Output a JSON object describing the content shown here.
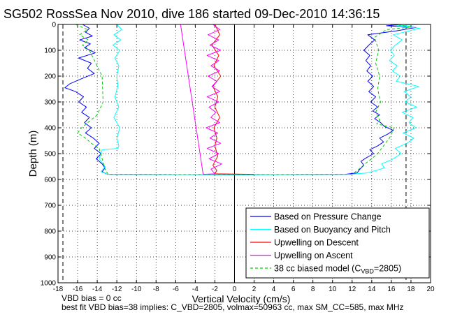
{
  "chart_data": {
    "type": "line",
    "title": "SG502 RossSea Nov 2010, dive 186 started 09-Dec-2010 14:36:15",
    "xlabel": "Vertical Velocity (cm/s)",
    "ylabel": "Depth (m)",
    "xlim": [
      -18,
      20
    ],
    "ylim": [
      1000,
      0
    ],
    "y_reversed": true,
    "grid": true,
    "xticks": [
      "-18",
      "-16",
      "-14",
      "-12",
      "-10",
      "-8",
      "-6",
      "-4",
      "-2",
      "0",
      "2",
      "4",
      "6",
      "8",
      "10",
      "12",
      "14",
      "16",
      "18",
      "20"
    ],
    "yticks": [
      "0",
      "100",
      "200",
      "300",
      "400",
      "500",
      "600",
      "700",
      "800",
      "900",
      "1000"
    ],
    "legend": {
      "placement": "bottom-right",
      "entries": [
        {
          "label": "Based on Pressure Change",
          "color": "#0000ff",
          "style": "solid"
        },
        {
          "label": "Based on Buoyancy and Pitch",
          "color": "#00ffff",
          "style": "solid"
        },
        {
          "label": "Upwelling on Descent",
          "color": "#ff0000",
          "style": "solid"
        },
        {
          "label": "Upwelling on Ascent",
          "color": "#ff00ff",
          "style": "solid"
        },
        {
          "label": "38 cc biased model (C",
          "sub": "VBD",
          "suffix": "=2805)",
          "color": "#00cc00",
          "style": "dashed"
        }
      ]
    },
    "vlines": [
      {
        "x": -17.5,
        "style": "dashed"
      },
      {
        "x": 17.5,
        "style": "dashed"
      },
      {
        "x": 0,
        "style": "solid"
      }
    ],
    "series": [
      {
        "color": "#0000ff",
        "points": [
          [
            -15.5,
            0
          ],
          [
            -14.8,
            15
          ],
          [
            -15.2,
            30
          ],
          [
            -14.5,
            45
          ],
          [
            -15.8,
            60
          ],
          [
            -14.7,
            75
          ],
          [
            -15.3,
            90
          ],
          [
            -14.2,
            110
          ],
          [
            -15.9,
            130
          ],
          [
            -14.6,
            150
          ],
          [
            -15.0,
            170
          ],
          [
            -14.3,
            190
          ],
          [
            -15.6,
            210
          ],
          [
            -16.8,
            230
          ],
          [
            -17.3,
            245
          ],
          [
            -16.2,
            260
          ],
          [
            -15.4,
            280
          ],
          [
            -15.9,
            300
          ],
          [
            -15.1,
            320
          ],
          [
            -15.6,
            340
          ],
          [
            -14.8,
            360
          ],
          [
            -15.3,
            380
          ],
          [
            -14.6,
            400
          ],
          [
            -15.2,
            420
          ],
          [
            -14.4,
            440
          ],
          [
            -13.8,
            460
          ],
          [
            -14.3,
            480
          ],
          [
            -13.6,
            500
          ],
          [
            -14.1,
            520
          ],
          [
            -13.5,
            540
          ],
          [
            -13.2,
            555
          ],
          [
            -13.5,
            570
          ],
          [
            -13.0,
            580
          ],
          [
            -5,
            581
          ],
          [
            0,
            582
          ],
          [
            4,
            581
          ],
          [
            11.3,
            580
          ],
          [
            12.5,
            575
          ],
          [
            12.8,
            560
          ],
          [
            13.2,
            545
          ],
          [
            12.9,
            530
          ],
          [
            13.5,
            515
          ],
          [
            14.2,
            500
          ],
          [
            13.8,
            485
          ],
          [
            14.6,
            470
          ],
          [
            15.2,
            455
          ],
          [
            14.8,
            440
          ],
          [
            15.6,
            425
          ],
          [
            16.2,
            410
          ],
          [
            15.3,
            395
          ],
          [
            14.9,
            380
          ],
          [
            14.3,
            365
          ],
          [
            14.8,
            350
          ],
          [
            14.1,
            335
          ],
          [
            14.6,
            320
          ],
          [
            13.9,
            300
          ],
          [
            14.4,
            280
          ],
          [
            13.7,
            260
          ],
          [
            14.2,
            240
          ],
          [
            13.6,
            220
          ],
          [
            14.1,
            200
          ],
          [
            13.5,
            180
          ],
          [
            13.9,
            160
          ],
          [
            13.4,
            140
          ],
          [
            13.8,
            120
          ],
          [
            13.2,
            100
          ],
          [
            13.7,
            80
          ],
          [
            14.3,
            60
          ],
          [
            13.6,
            40
          ],
          [
            16.5,
            25
          ],
          [
            18.5,
            12
          ],
          [
            15.5,
            5
          ],
          [
            17.2,
            0
          ]
        ]
      },
      {
        "color": "#00ffff",
        "points": [
          [
            -12.0,
            0
          ],
          [
            -11.5,
            20
          ],
          [
            -12.3,
            40
          ],
          [
            -11.6,
            60
          ],
          [
            -12.4,
            80
          ],
          [
            -11.7,
            100
          ],
          [
            -12.2,
            130
          ],
          [
            -11.8,
            160
          ],
          [
            -12.0,
            200
          ],
          [
            -11.9,
            240
          ],
          [
            -12.2,
            280
          ],
          [
            -11.8,
            320
          ],
          [
            -12.3,
            360
          ],
          [
            -11.7,
            400
          ],
          [
            -12.0,
            440
          ],
          [
            -11.8,
            470
          ],
          [
            -11.9,
            480
          ],
          [
            -13.5,
            485
          ],
          [
            -13.8,
            520
          ],
          [
            -13.2,
            550
          ],
          [
            -13.6,
            570
          ],
          [
            -13.0,
            580
          ],
          [
            -5,
            581
          ],
          [
            0,
            582
          ],
          [
            5,
            581
          ],
          [
            11.8,
            580
          ],
          [
            13.5,
            575
          ],
          [
            14.5,
            565
          ],
          [
            15.3,
            555
          ],
          [
            15.0,
            540
          ],
          [
            16.2,
            520
          ],
          [
            17.0,
            500
          ],
          [
            16.4,
            480
          ],
          [
            17.6,
            460
          ],
          [
            18.3,
            440
          ],
          [
            17.2,
            420
          ],
          [
            18.5,
            400
          ],
          [
            17.8,
            380
          ],
          [
            18.2,
            360
          ],
          [
            17.1,
            340
          ],
          [
            18.6,
            320
          ],
          [
            17.4,
            300
          ],
          [
            18.0,
            280
          ],
          [
            17.3,
            260
          ],
          [
            18.8,
            240
          ],
          [
            16.5,
            220
          ],
          [
            16.9,
            200
          ],
          [
            16.1,
            180
          ],
          [
            16.6,
            160
          ],
          [
            15.8,
            140
          ],
          [
            16.3,
            120
          ],
          [
            15.9,
            100
          ],
          [
            16.4,
            80
          ],
          [
            17.1,
            60
          ],
          [
            16.2,
            40
          ],
          [
            17.8,
            25
          ],
          [
            18.9,
            15
          ],
          [
            16.5,
            5
          ],
          [
            19.0,
            0
          ]
        ]
      },
      {
        "color": "#00cc00",
        "style": "dashed",
        "points": [
          [
            -16.2,
            0
          ],
          [
            -15.0,
            20
          ],
          [
            -15.8,
            40
          ],
          [
            -14.9,
            60
          ],
          [
            -15.5,
            80
          ],
          [
            -14.8,
            100
          ],
          [
            -13.5,
            200
          ],
          [
            -13.4,
            300
          ],
          [
            -14.0,
            350
          ],
          [
            -15.6,
            400
          ],
          [
            -16.0,
            420
          ],
          [
            -15.2,
            440
          ],
          [
            -14.6,
            460
          ],
          [
            -13.8,
            480
          ],
          [
            -13.5,
            520
          ],
          [
            -13.2,
            560
          ],
          [
            -12.9,
            580
          ],
          [
            0,
            581
          ],
          [
            12.0,
            580
          ],
          [
            12.7,
            560
          ],
          [
            13.3,
            540
          ],
          [
            14.0,
            520
          ],
          [
            14.6,
            500
          ],
          [
            15.2,
            470
          ],
          [
            15.8,
            440
          ],
          [
            16.3,
            400
          ],
          [
            14.5,
            385
          ],
          [
            14.8,
            370
          ],
          [
            14.4,
            340
          ],
          [
            14.9,
            300
          ],
          [
            14.6,
            250
          ],
          [
            14.8,
            200
          ],
          [
            14.4,
            150
          ],
          [
            14.7,
            100
          ],
          [
            14.3,
            50
          ],
          [
            15.5,
            20
          ],
          [
            18.0,
            10
          ],
          [
            16.5,
            0
          ]
        ]
      },
      {
        "color": "#ff0000",
        "points": [
          [
            -2.0,
            0
          ],
          [
            -1.5,
            40
          ],
          [
            -2.3,
            80
          ],
          [
            -1.6,
            120
          ],
          [
            -2.1,
            160
          ],
          [
            -1.4,
            200
          ],
          [
            -2.2,
            240
          ],
          [
            -1.7,
            280
          ],
          [
            -2.0,
            320
          ],
          [
            -1.5,
            360
          ],
          [
            -2.1,
            400
          ],
          [
            -1.8,
            440
          ],
          [
            -2.0,
            470
          ],
          [
            -1.7,
            510
          ],
          [
            -2.2,
            545
          ],
          [
            -1.8,
            565
          ],
          [
            -2.0,
            578
          ],
          [
            0,
            579
          ],
          [
            2,
            580
          ]
        ]
      },
      {
        "color": "#ff00ff",
        "points": [
          [
            -5.5,
            0
          ],
          [
            -3.2,
            580
          ],
          [
            -2.0,
            578
          ],
          [
            -2.4,
            560
          ],
          [
            -1.3,
            540
          ],
          [
            -2.6,
            520
          ],
          [
            -1.6,
            500
          ],
          [
            -2.8,
            480
          ],
          [
            -1.4,
            460
          ],
          [
            -2.5,
            440
          ],
          [
            -1.7,
            420
          ],
          [
            -2.9,
            400
          ],
          [
            -1.5,
            380
          ],
          [
            -2.4,
            360
          ],
          [
            -1.9,
            340
          ],
          [
            -2.6,
            320
          ],
          [
            -1.6,
            300
          ],
          [
            -2.8,
            280
          ],
          [
            -1.5,
            260
          ],
          [
            -2.3,
            240
          ],
          [
            -1.8,
            220
          ],
          [
            -2.7,
            200
          ],
          [
            -1.5,
            180
          ],
          [
            -2.4,
            160
          ],
          [
            -1.6,
            140
          ],
          [
            -2.8,
            120
          ],
          [
            -1.4,
            100
          ],
          [
            -2.5,
            80
          ],
          [
            -1.6,
            60
          ],
          [
            -2.7,
            40
          ],
          [
            -1.5,
            20
          ],
          [
            -2.2,
            0
          ]
        ]
      }
    ]
  },
  "footer": {
    "line1": "VBD bias = 0 cc",
    "line2": "best fit VBD bias=38 implies: C_VBD=2805, volmax=50963 cc, max SM_CC=585, max MHz"
  }
}
